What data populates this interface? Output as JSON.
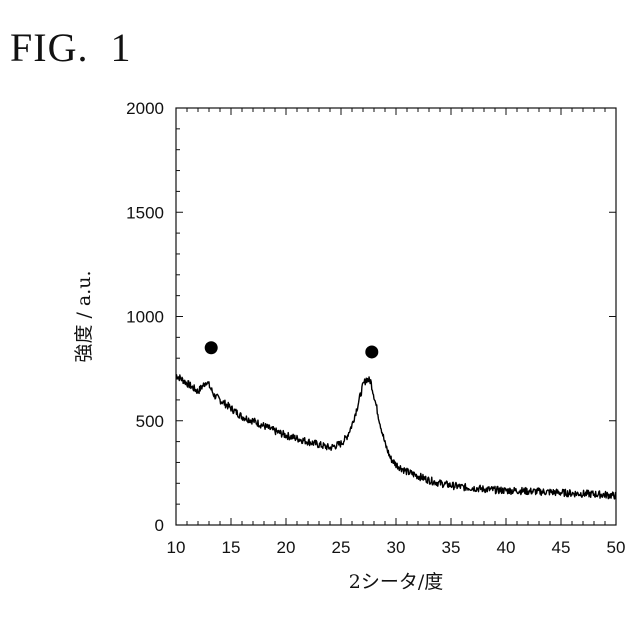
{
  "figure": {
    "label": "FIG.  1"
  },
  "chart_data": {
    "type": "line",
    "xlabel": "2シータ/度",
    "ylabel": "強度 / a.u.",
    "xlim": [
      10,
      50
    ],
    "ylim": [
      0,
      2000
    ],
    "x_ticks": [
      10,
      15,
      20,
      25,
      30,
      35,
      40,
      45,
      50
    ],
    "y_ticks": [
      0,
      500,
      1000,
      1500,
      2000
    ],
    "grid": false,
    "series": [
      {
        "color": "#000000",
        "x": [
          10,
          11,
          12,
          12.8,
          13.5,
          14,
          15,
          16,
          17,
          18,
          19,
          20,
          21,
          22,
          23,
          24,
          25,
          25.5,
          26,
          26.5,
          27,
          27.3,
          27.7,
          28,
          28.5,
          29,
          29.5,
          30,
          31,
          32,
          33,
          34,
          35,
          36,
          37,
          38,
          39,
          40,
          41,
          42,
          43,
          44,
          45,
          46,
          47,
          48,
          49,
          50
        ],
        "y": [
          720,
          680,
          640,
          690,
          620,
          600,
          560,
          520,
          500,
          475,
          450,
          430,
          415,
          400,
          385,
          370,
          390,
          420,
          480,
          570,
          670,
          700,
          690,
          620,
          500,
          390,
          320,
          290,
          255,
          235,
          215,
          200,
          190,
          182,
          178,
          172,
          168,
          165,
          165,
          162,
          160,
          158,
          155,
          152,
          150,
          148,
          145,
          140
        ]
      }
    ],
    "markers": [
      {
        "x": 13.2,
        "y": 850
      },
      {
        "x": 27.8,
        "y": 830
      }
    ]
  }
}
